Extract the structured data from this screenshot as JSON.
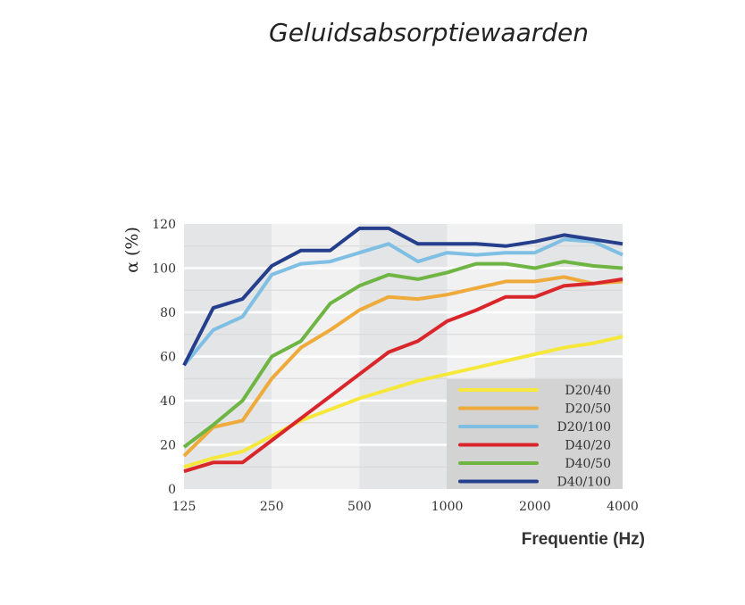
{
  "chart_data": {
    "type": "line",
    "title": "Geluidsabsorptiewaarden",
    "xlabel": "Frequentie (Hz)",
    "ylabel": "α  (%)",
    "x": [
      125,
      160,
      200,
      250,
      315,
      400,
      500,
      630,
      800,
      1000,
      1250,
      1600,
      2000,
      2500,
      3150,
      4000
    ],
    "x_tick_labels": [
      "125",
      "250",
      "500",
      "1000",
      "2000",
      "4000"
    ],
    "y_tick_labels": [
      "0",
      "20",
      "40",
      "60",
      "80",
      "100",
      "120"
    ],
    "ylim": [
      0,
      120
    ],
    "grid": true,
    "legend_position": "bottom-right",
    "series": [
      {
        "name": "D20/40",
        "color": "#f5e83a",
        "values": [
          10,
          14,
          17,
          24,
          31,
          36,
          41,
          45,
          49,
          52,
          55,
          58,
          61,
          64,
          66,
          69
        ]
      },
      {
        "name": "D20/50",
        "color": "#eeaa3a",
        "values": [
          15,
          28,
          31,
          50,
          64,
          72,
          81,
          87,
          86,
          88,
          91,
          94,
          94,
          96,
          93,
          94
        ]
      },
      {
        "name": "D20/100",
        "color": "#7ebfe3",
        "values": [
          56,
          72,
          78,
          97,
          102,
          103,
          107,
          111,
          103,
          107,
          106,
          107,
          107,
          113,
          112,
          106
        ]
      },
      {
        "name": "D40/20",
        "color": "#d9262b",
        "values": [
          8,
          12,
          12,
          22,
          32,
          42,
          52,
          62,
          67,
          76,
          81,
          87,
          87,
          92,
          93,
          95
        ]
      },
      {
        "name": "D40/50",
        "color": "#6fb544",
        "values": [
          19,
          29,
          40,
          60,
          67,
          84,
          92,
          97,
          95,
          98,
          102,
          102,
          100,
          103,
          101,
          100
        ]
      },
      {
        "name": "D40/100",
        "color": "#253f8c",
        "values": [
          56,
          82,
          86,
          101,
          108,
          108,
          118,
          118,
          111,
          111,
          111,
          110,
          112,
          115,
          113,
          111
        ]
      }
    ]
  }
}
